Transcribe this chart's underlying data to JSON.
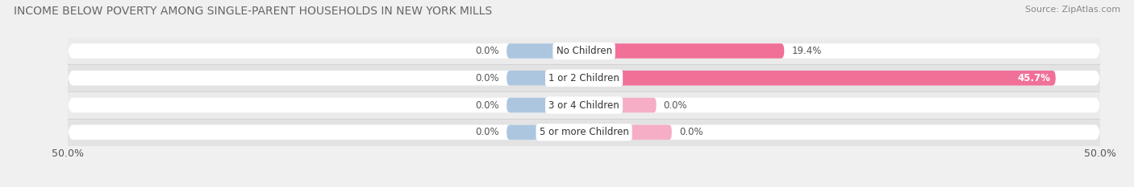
{
  "title": "INCOME BELOW POVERTY AMONG SINGLE-PARENT HOUSEHOLDS IN NEW YORK MILLS",
  "source": "Source: ZipAtlas.com",
  "categories": [
    "No Children",
    "1 or 2 Children",
    "3 or 4 Children",
    "5 or more Children"
  ],
  "single_father": [
    0.0,
    0.0,
    0.0,
    0.0
  ],
  "single_mother": [
    19.4,
    45.7,
    0.0,
    0.0
  ],
  "mother_stub": [
    5.0,
    5.0,
    7.0,
    8.5
  ],
  "father_stub": [
    7.5,
    7.5,
    7.5,
    7.5
  ],
  "x_min": -50.0,
  "x_max": 50.0,
  "color_father": "#adc6e0",
  "color_mother": "#f07098",
  "color_mother_light": "#f5aec5",
  "background_row_odd": "#ececec",
  "background_row_even": "#e4e4e4",
  "background_bar": "#ffffff",
  "title_fontsize": 10,
  "source_fontsize": 8,
  "tick_fontsize": 9,
  "legend_fontsize": 9,
  "bar_label_fontsize": 8.5,
  "cat_label_fontsize": 8.5,
  "bar_height": 0.55
}
